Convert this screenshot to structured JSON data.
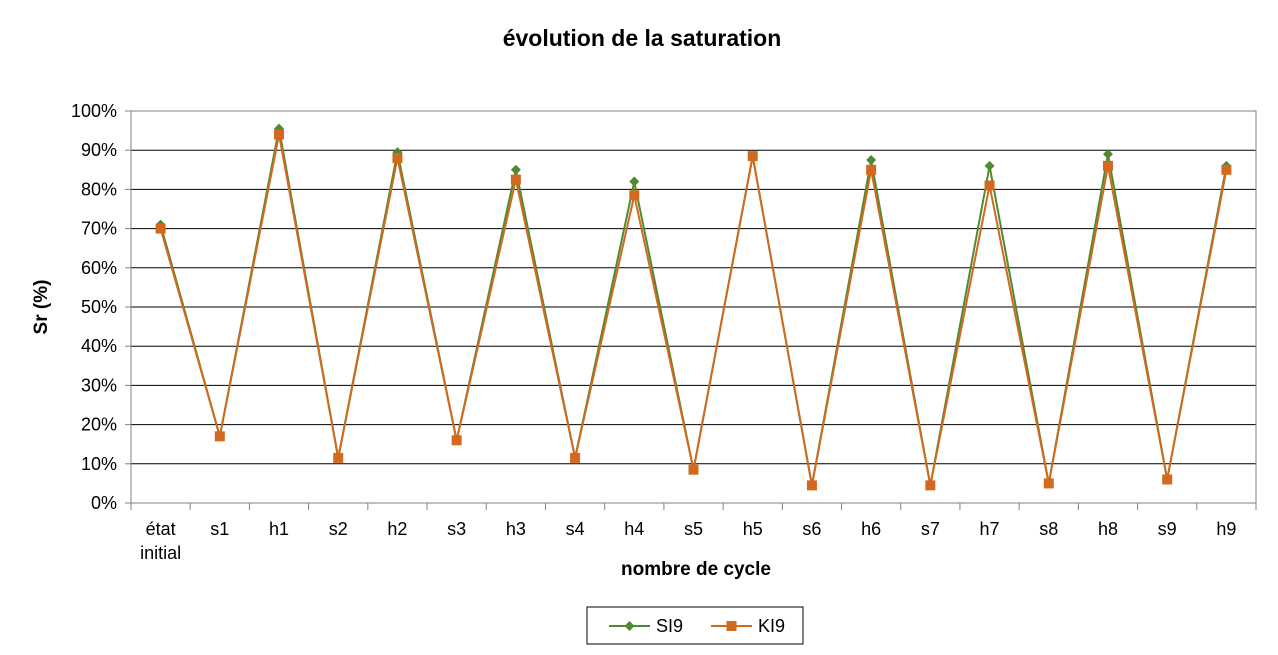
{
  "chart_data": {
    "type": "line",
    "title": "évolution de la saturation",
    "xlabel": "nombre de cycle",
    "ylabel": "Sr (%)",
    "categories": [
      "état\ninitial",
      "s1",
      "h1",
      "s2",
      "h2",
      "s3",
      "h3",
      "s4",
      "h4",
      "s5",
      "h5",
      "s6",
      "h6",
      "s7",
      "h7",
      "s8",
      "h8",
      "s9",
      "h9"
    ],
    "ylim": [
      0,
      100
    ],
    "yticks": [
      "0%",
      "10%",
      "20%",
      "30%",
      "40%",
      "50%",
      "60%",
      "70%",
      "80%",
      "90%",
      "100%"
    ],
    "grid": true,
    "legend_position": "bottom",
    "series": [
      {
        "name": "SI9",
        "color": "#4f8a33",
        "marker": "diamond",
        "values": [
          71,
          17,
          95.5,
          11.5,
          89.5,
          16,
          85,
          11.5,
          82,
          8.5,
          88.5,
          4.5,
          87.5,
          4.5,
          86,
          5,
          89,
          6,
          86
        ]
      },
      {
        "name": "KI9",
        "color": "#d2691e",
        "marker": "square",
        "values": [
          70,
          17,
          94,
          11.5,
          88,
          16,
          82.5,
          11.5,
          78.5,
          8.5,
          88.5,
          4.5,
          85,
          4.5,
          81,
          5,
          86,
          6,
          85
        ]
      }
    ]
  }
}
